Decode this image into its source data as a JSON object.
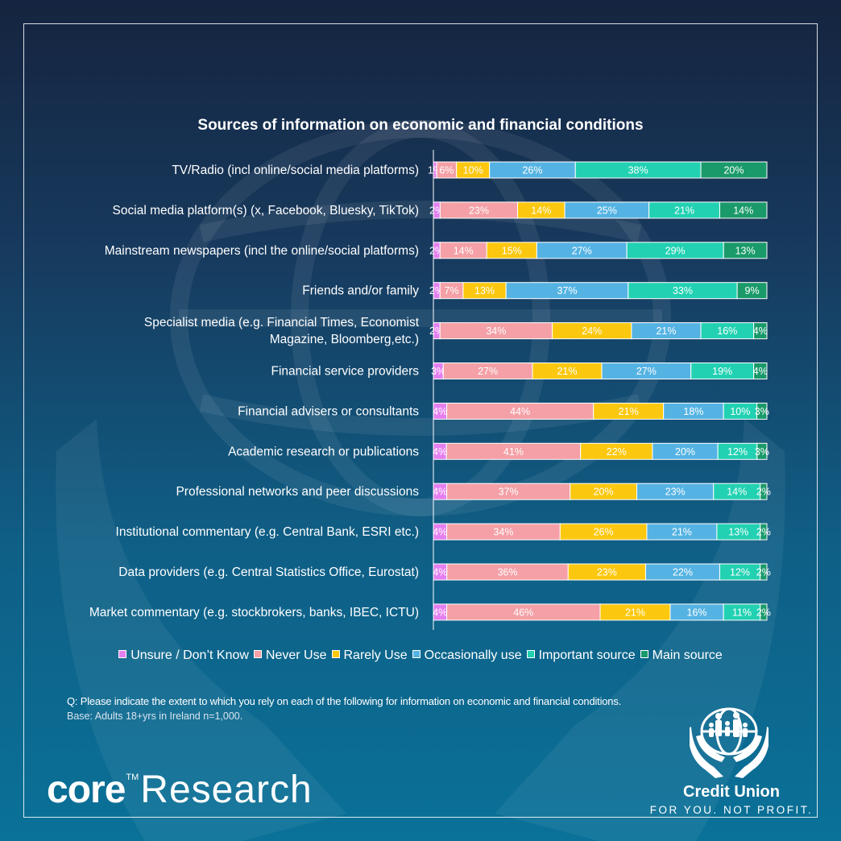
{
  "chart_data": {
    "type": "bar",
    "orientation": "horizontal-stacked-100",
    "title": "Sources of information on economic and financial conditions",
    "categories": [
      "TV/Radio (incl online/social media platforms)",
      "Social media platform(s) (x, Facebook, Bluesky, TikTok)",
      "Mainstream newspapers (incl the online/social platforms)",
      "Friends and/or family",
      "Specialist media (e.g. Financial Times, Economist Magazine, Bloomberg,etc.)",
      "Financial service providers",
      "Financial advisers or consultants",
      "Academic research or publications",
      "Professional networks and peer discussions",
      "Institutional commentary (e.g. Central Bank, ESRI etc.)",
      "Data providers (e.g. Central Statistics Office, Eurostat)",
      "Market commentary (e.g. stockbrokers, banks, IBEC, ICTU)"
    ],
    "category_lines": [
      [
        "TV/Radio (incl online/social media platforms)"
      ],
      [
        "Social media platform(s) (x, Facebook, Bluesky, TikTok)"
      ],
      [
        "Mainstream newspapers (incl the online/social platforms)"
      ],
      [
        "Friends and/or family"
      ],
      [
        "Specialist media (e.g. Financial Times, Economist",
        "Magazine, Bloomberg,etc.)"
      ],
      [
        "Financial service providers"
      ],
      [
        "Financial advisers or consultants"
      ],
      [
        "Academic research or publications"
      ],
      [
        "Professional networks and peer discussions"
      ],
      [
        "Institutional commentary (e.g. Central Bank, ESRI etc.)"
      ],
      [
        "Data providers (e.g. Central Statistics Office, Eurostat)"
      ],
      [
        "Market commentary (e.g. stockbrokers, banks, IBEC, ICTU)"
      ]
    ],
    "series": [
      {
        "name": "Unsure / Don’t Know",
        "color": "#e57ff0",
        "text_color": "#ffffff",
        "values": [
          1,
          2,
          2,
          2,
          2,
          3,
          4,
          4,
          4,
          4,
          4,
          4
        ]
      },
      {
        "name": "Never Use",
        "color": "#f4a0a6",
        "text_color": "#ffffff",
        "values": [
          6,
          23,
          14,
          7,
          34,
          27,
          44,
          41,
          37,
          34,
          36,
          46
        ]
      },
      {
        "name": "Rarely Use",
        "color": "#fcc80f",
        "text_color": "#ffffff",
        "values": [
          10,
          14,
          15,
          13,
          24,
          21,
          21,
          22,
          20,
          26,
          23,
          21
        ]
      },
      {
        "name": "Occasionally use",
        "color": "#55b3e3",
        "text_color": "#ffffff",
        "values": [
          26,
          25,
          27,
          37,
          21,
          27,
          18,
          20,
          23,
          21,
          22,
          16
        ]
      },
      {
        "name": "Important source",
        "color": "#22d1b2",
        "text_color": "#ffffff",
        "values": [
          38,
          21,
          29,
          33,
          16,
          19,
          10,
          12,
          14,
          13,
          12,
          11
        ]
      },
      {
        "name": "Main source",
        "color": "#1a9a6a",
        "text_color": "#ffffff",
        "values": [
          20,
          14,
          13,
          9,
          4,
          4,
          3,
          3,
          2,
          2,
          2,
          2
        ]
      }
    ],
    "value_suffix": "%",
    "legend_position": "bottom",
    "grid": false
  },
  "footnote": {
    "question": "Q: Please indicate the extent to which you rely on each of the following for information on economic and financial conditions.",
    "base": "Base: Adults 18+yrs in Ireland n=1,000."
  },
  "branding": {
    "core_word": "core",
    "core_tm": "TM",
    "core_research": "Research",
    "credit_union_name": "Credit Union",
    "credit_union_tagline": "FOR YOU. NOT PROFIT.",
    "emblem_icon": "credit-union-hands-family-globe-icon"
  }
}
